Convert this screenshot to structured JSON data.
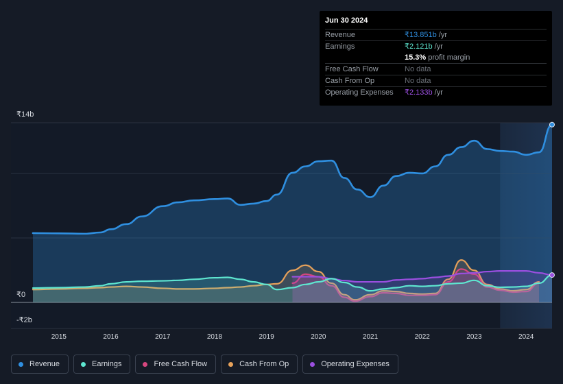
{
  "chart_data": {
    "type": "line",
    "y_labels": {
      "top": "₹14b",
      "zero": "₹0",
      "bottom": "-₹2b"
    },
    "ylim": [
      -2,
      14
    ],
    "xlim": [
      2014.5,
      2024.5
    ],
    "x_ticks": [
      "2015",
      "2016",
      "2017",
      "2018",
      "2019",
      "2020",
      "2021",
      "2022",
      "2023",
      "2024"
    ],
    "forecast_start": 2023.5,
    "series": [
      {
        "name": "Revenue",
        "color": "#2f8fe0",
        "fill": true,
        "points": [
          [
            2014.5,
            5.4
          ],
          [
            2015.0,
            5.38
          ],
          [
            2015.5,
            5.35
          ],
          [
            2015.8,
            5.45
          ],
          [
            2016.0,
            5.7
          ],
          [
            2016.3,
            6.1
          ],
          [
            2016.6,
            6.7
          ],
          [
            2017.0,
            7.5
          ],
          [
            2017.3,
            7.8
          ],
          [
            2017.6,
            7.95
          ],
          [
            2018.0,
            8.05
          ],
          [
            2018.25,
            8.1
          ],
          [
            2018.5,
            7.6
          ],
          [
            2018.75,
            7.7
          ],
          [
            2019.0,
            7.9
          ],
          [
            2019.2,
            8.4
          ],
          [
            2019.5,
            10.1
          ],
          [
            2019.75,
            10.6
          ],
          [
            2020.0,
            11.0
          ],
          [
            2020.25,
            11.05
          ],
          [
            2020.5,
            9.7
          ],
          [
            2020.75,
            8.8
          ],
          [
            2021.0,
            8.2
          ],
          [
            2021.25,
            9.1
          ],
          [
            2021.5,
            9.85
          ],
          [
            2021.75,
            10.1
          ],
          [
            2022.0,
            10.05
          ],
          [
            2022.25,
            10.6
          ],
          [
            2022.5,
            11.5
          ],
          [
            2022.75,
            12.1
          ],
          [
            2023.0,
            12.6
          ],
          [
            2023.25,
            11.95
          ],
          [
            2023.5,
            11.8
          ],
          [
            2023.75,
            11.75
          ],
          [
            2024.0,
            11.5
          ],
          [
            2024.25,
            11.7
          ],
          [
            2024.5,
            13.851
          ]
        ]
      },
      {
        "name": "Earnings",
        "color": "#5ee6d0",
        "fill": true,
        "points": [
          [
            2014.5,
            1.12
          ],
          [
            2015.0,
            1.15
          ],
          [
            2015.5,
            1.2
          ],
          [
            2015.8,
            1.3
          ],
          [
            2016.0,
            1.45
          ],
          [
            2016.3,
            1.6
          ],
          [
            2016.6,
            1.65
          ],
          [
            2017.0,
            1.68
          ],
          [
            2017.3,
            1.72
          ],
          [
            2017.6,
            1.8
          ],
          [
            2018.0,
            1.92
          ],
          [
            2018.25,
            1.95
          ],
          [
            2018.5,
            1.8
          ],
          [
            2018.75,
            1.6
          ],
          [
            2019.0,
            1.4
          ],
          [
            2019.2,
            1.0
          ],
          [
            2019.5,
            1.15
          ],
          [
            2019.75,
            1.4
          ],
          [
            2020.0,
            1.6
          ],
          [
            2020.25,
            1.85
          ],
          [
            2020.5,
            1.55
          ],
          [
            2020.75,
            1.2
          ],
          [
            2021.0,
            0.9
          ],
          [
            2021.25,
            1.05
          ],
          [
            2021.5,
            1.15
          ],
          [
            2021.75,
            1.3
          ],
          [
            2022.0,
            1.25
          ],
          [
            2022.25,
            1.3
          ],
          [
            2022.5,
            1.45
          ],
          [
            2022.75,
            1.5
          ],
          [
            2023.0,
            1.72
          ],
          [
            2023.25,
            1.3
          ],
          [
            2023.5,
            1.18
          ],
          [
            2023.75,
            1.2
          ],
          [
            2024.0,
            1.25
          ],
          [
            2024.25,
            1.5
          ],
          [
            2024.5,
            2.121
          ]
        ]
      },
      {
        "name": "Free Cash Flow",
        "color": "#d6477f",
        "fill": true,
        "points": [
          [
            2019.5,
            1.5
          ],
          [
            2019.75,
            2.2
          ],
          [
            2020.0,
            2.0
          ],
          [
            2020.25,
            1.3
          ],
          [
            2020.5,
            0.4
          ],
          [
            2020.7,
            0.1
          ],
          [
            2021.0,
            0.45
          ],
          [
            2021.25,
            0.75
          ],
          [
            2021.5,
            0.7
          ],
          [
            2021.75,
            0.55
          ],
          [
            2022.0,
            0.55
          ],
          [
            2022.25,
            0.6
          ],
          [
            2022.5,
            1.6
          ],
          [
            2022.75,
            2.6
          ],
          [
            2023.0,
            2.2
          ],
          [
            2023.25,
            1.2
          ],
          [
            2023.5,
            0.95
          ],
          [
            2023.75,
            0.8
          ],
          [
            2024.0,
            0.85
          ],
          [
            2024.25,
            1.5
          ]
        ]
      },
      {
        "name": "Cash From Op",
        "color": "#e6a15a",
        "fill": true,
        "points": [
          [
            2014.5,
            1.0
          ],
          [
            2015.0,
            1.05
          ],
          [
            2015.5,
            1.1
          ],
          [
            2015.8,
            1.15
          ],
          [
            2016.0,
            1.2
          ],
          [
            2016.3,
            1.25
          ],
          [
            2016.6,
            1.2
          ],
          [
            2017.0,
            1.1
          ],
          [
            2017.3,
            1.05
          ],
          [
            2017.6,
            1.05
          ],
          [
            2018.0,
            1.1
          ],
          [
            2018.25,
            1.15
          ],
          [
            2018.5,
            1.2
          ],
          [
            2018.75,
            1.3
          ],
          [
            2019.0,
            1.4
          ],
          [
            2019.2,
            1.45
          ],
          [
            2019.5,
            2.5
          ],
          [
            2019.75,
            2.9
          ],
          [
            2020.0,
            2.4
          ],
          [
            2020.25,
            1.5
          ],
          [
            2020.5,
            0.6
          ],
          [
            2020.7,
            0.2
          ],
          [
            2021.0,
            0.6
          ],
          [
            2021.25,
            0.9
          ],
          [
            2021.5,
            0.85
          ],
          [
            2021.75,
            0.7
          ],
          [
            2022.0,
            0.65
          ],
          [
            2022.25,
            0.7
          ],
          [
            2022.5,
            1.8
          ],
          [
            2022.75,
            3.3
          ],
          [
            2023.0,
            2.5
          ],
          [
            2023.25,
            1.4
          ],
          [
            2023.5,
            1.05
          ],
          [
            2023.75,
            0.9
          ],
          [
            2024.0,
            1.0
          ],
          [
            2024.25,
            1.6
          ]
        ]
      },
      {
        "name": "Operating Expenses",
        "color": "#9b4fe0",
        "fill": true,
        "points": [
          [
            2019.5,
            2.0
          ],
          [
            2019.75,
            2.0
          ],
          [
            2020.0,
            2.0
          ],
          [
            2020.25,
            1.85
          ],
          [
            2020.5,
            1.7
          ],
          [
            2020.75,
            1.6
          ],
          [
            2021.0,
            1.6
          ],
          [
            2021.25,
            1.6
          ],
          [
            2021.5,
            1.75
          ],
          [
            2021.75,
            1.8
          ],
          [
            2022.0,
            1.85
          ],
          [
            2022.25,
            1.95
          ],
          [
            2022.5,
            2.05
          ],
          [
            2022.75,
            2.25
          ],
          [
            2023.0,
            2.3
          ],
          [
            2023.25,
            2.4
          ],
          [
            2023.5,
            2.45
          ],
          [
            2023.75,
            2.45
          ],
          [
            2024.0,
            2.45
          ],
          [
            2024.25,
            2.3
          ],
          [
            2024.5,
            2.133
          ]
        ]
      }
    ]
  },
  "tooltip": {
    "date": "Jun 30 2024",
    "rows": [
      {
        "label": "Revenue",
        "value": "₹13.851b",
        "unit": "/yr",
        "color": "#2f8fe0"
      },
      {
        "label": "Earnings",
        "value": "₹2.121b",
        "unit": "/yr",
        "color": "#5ee6d0"
      },
      {
        "label": "",
        "value": "15.3%",
        "unit": "profit margin",
        "color": "#ffffff"
      },
      {
        "label": "Free Cash Flow",
        "value": "No data",
        "unit": "",
        "color": "#6b7078"
      },
      {
        "label": "Cash From Op",
        "value": "No data",
        "unit": "",
        "color": "#6b7078"
      },
      {
        "label": "Operating Expenses",
        "value": "₹2.133b",
        "unit": "/yr",
        "color": "#9b4fe0"
      }
    ]
  },
  "legend": [
    {
      "label": "Revenue",
      "color": "#2f8fe0"
    },
    {
      "label": "Earnings",
      "color": "#5ee6d0"
    },
    {
      "label": "Free Cash Flow",
      "color": "#d6477f"
    },
    {
      "label": "Cash From Op",
      "color": "#e6a15a"
    },
    {
      "label": "Operating Expenses",
      "color": "#9b4fe0"
    }
  ]
}
